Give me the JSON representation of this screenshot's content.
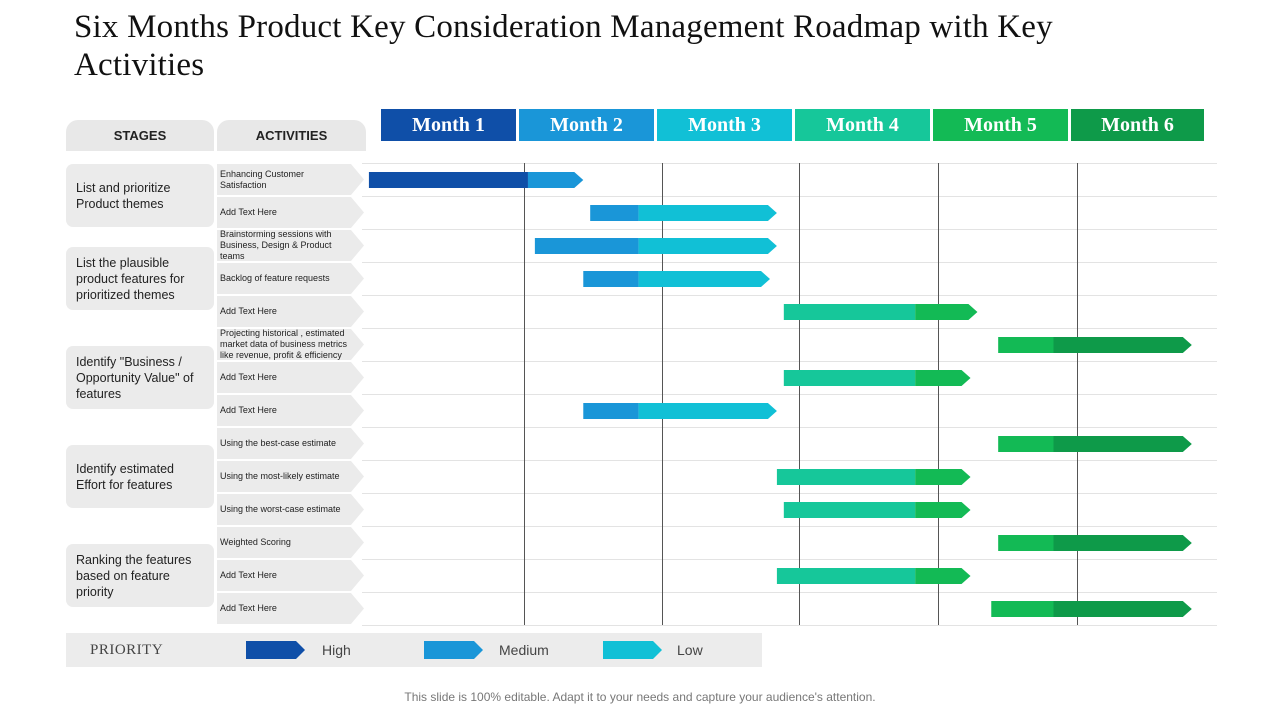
{
  "title": "Six Months Product Key Consideration Management Roadmap with Key Activities",
  "headers": {
    "stages": "STAGES",
    "activities": "ACTIVITIES"
  },
  "months": [
    "Month 1",
    "Month 2",
    "Month 3",
    "Month 4",
    "Month 5",
    "Month 6"
  ],
  "month_colors": [
    "#0f4fa8",
    "#1a96d8",
    "#11c0d6",
    "#16c79a",
    "#13ba55",
    "#0e9a49"
  ],
  "stages": [
    "List and prioritize Product themes",
    "List the plausible product features for prioritized themes",
    "Identify \"Business / Opportunity Value\" of features",
    "Identify estimated Effort for features",
    "Ranking the features based on feature priority"
  ],
  "activities": [
    "Enhancing Customer Satisfaction",
    "Add Text Here",
    "Brainstorming sessions with Business, Design & Product teams",
    "Backlog of feature requests",
    "Add Text Here",
    "Projecting historical , estimated market data of business metrics like revenue, profit & efficiency",
    "Add Text Here",
    "Add Text Here",
    "Using the best-case estimate",
    "Using the most-likely estimate",
    "Using the worst-case estimate",
    "Weighted Scoring",
    "Add Text Here",
    "Add Text Here"
  ],
  "chart_data": {
    "type": "gantt",
    "x_unit": "months",
    "tasks": [
      {
        "activity": "Enhancing Customer Satisfaction",
        "start": 0.05,
        "split": 1.2,
        "end": 1.6,
        "colors": [
          "#0f4fa8",
          "#1a96d8"
        ]
      },
      {
        "activity": "Add Text Here",
        "start": 1.65,
        "split": 2.0,
        "end": 3.0,
        "colors": [
          "#1a96d8",
          "#11c0d6"
        ]
      },
      {
        "activity": "Brainstorming sessions with Business, Design & Product teams",
        "start": 1.25,
        "split": 2.0,
        "end": 3.0,
        "colors": [
          "#1a96d8",
          "#11c0d6"
        ]
      },
      {
        "activity": "Backlog of feature requests",
        "start": 1.6,
        "split": 2.0,
        "end": 2.95,
        "colors": [
          "#1a96d8",
          "#11c0d6"
        ]
      },
      {
        "activity": "Add Text Here",
        "start": 3.05,
        "split": 4.0,
        "end": 4.45,
        "colors": [
          "#16c79a",
          "#13ba55"
        ]
      },
      {
        "activity": "Projecting historical , estimated market data of business metrics like revenue, profit & efficiency",
        "start": 4.6,
        "split": 5.0,
        "end": 6.0,
        "colors": [
          "#13ba55",
          "#0e9a49"
        ]
      },
      {
        "activity": "Add Text Here",
        "start": 3.05,
        "split": 4.0,
        "end": 4.4,
        "colors": [
          "#16c79a",
          "#13ba55"
        ]
      },
      {
        "activity": "Add Text Here",
        "start": 1.6,
        "split": 2.0,
        "end": 3.0,
        "colors": [
          "#1a96d8",
          "#11c0d6"
        ]
      },
      {
        "activity": "Using the best-case estimate",
        "start": 4.6,
        "split": 5.0,
        "end": 6.0,
        "colors": [
          "#13ba55",
          "#0e9a49"
        ]
      },
      {
        "activity": "Using the most-likely estimate",
        "start": 3.0,
        "split": 4.0,
        "end": 4.4,
        "colors": [
          "#16c79a",
          "#13ba55"
        ]
      },
      {
        "activity": "Using the worst-case estimate",
        "start": 3.05,
        "split": 4.0,
        "end": 4.4,
        "colors": [
          "#16c79a",
          "#13ba55"
        ]
      },
      {
        "activity": "Weighted Scoring",
        "start": 4.6,
        "split": 5.0,
        "end": 6.0,
        "colors": [
          "#13ba55",
          "#0e9a49"
        ]
      },
      {
        "activity": "Add Text Here",
        "start": 3.0,
        "split": 4.0,
        "end": 4.4,
        "colors": [
          "#16c79a",
          "#13ba55"
        ]
      },
      {
        "activity": "Add Text Here",
        "start": 4.55,
        "split": 5.0,
        "end": 6.0,
        "colors": [
          "#13ba55",
          "#0e9a49"
        ]
      }
    ]
  },
  "legend": {
    "title": "PRIORITY",
    "items": [
      {
        "label": "High",
        "color": "#0f4fa8"
      },
      {
        "label": "Medium",
        "color": "#1a96d8"
      },
      {
        "label": "Low",
        "color": "#11c0d6"
      }
    ]
  },
  "footer": "This slide is 100% editable. Adapt it to your needs and capture your audience's attention."
}
